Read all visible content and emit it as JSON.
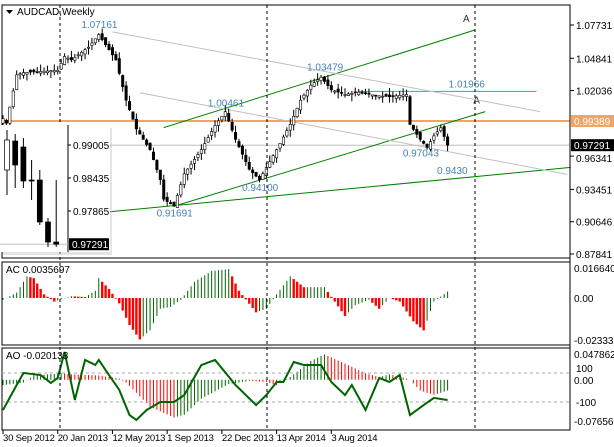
{
  "window": {
    "symbol_title": "AUDCAD,Weekly"
  },
  "colors": {
    "bull_body": "#ffffff",
    "bear_body": "#000000",
    "candle_outline": "#000000",
    "orange_level": "#f4a460",
    "teal_level": "#20b2aa",
    "trend_green": "#008000",
    "trend_grey": "#c0c0c0",
    "ac_up": "#006400",
    "ac_down": "#ff0000",
    "label_text": "#4682b4",
    "cci_line": "#006400"
  },
  "chart_data": [
    {
      "type": "candlestick",
      "title": "AUDCAD,Weekly",
      "price_axis_ticks": [
        "1.07731",
        "1.04841",
        "1.02036",
        "0.96341",
        "0.93451",
        "0.90646",
        "0.87841"
      ],
      "ylim": [
        0.87841,
        1.07731
      ],
      "date_ticks": [
        {
          "bar": 0,
          "label": "30 Sep 2012"
        },
        {
          "bar": 16,
          "label": "20 Jan 2013"
        },
        {
          "bar": 32,
          "label": "12 May 2013"
        },
        {
          "bar": 48,
          "label": "1 Sep 2013"
        },
        {
          "bar": 64,
          "label": "22 Dec 2013"
        },
        {
          "bar": 80,
          "label": "13 Apr 2014"
        },
        {
          "bar": 96,
          "label": "3 Aug 2014"
        }
      ],
      "close_path": [
        [
          0,
          0.996
        ],
        [
          1,
          0.992
        ],
        [
          4,
          1.034
        ],
        [
          6,
          1.036
        ],
        [
          16,
          1.038
        ],
        [
          18,
          1.05
        ],
        [
          20,
          1.047
        ],
        [
          25,
          1.058
        ],
        [
          28,
          1.069
        ],
        [
          33,
          1.047
        ],
        [
          36,
          1.012
        ],
        [
          39,
          0.987
        ],
        [
          43,
          0.969
        ],
        [
          46,
          0.943
        ],
        [
          47,
          0.926
        ],
        [
          50,
          0.92
        ],
        [
          53,
          0.948
        ],
        [
          58,
          0.969
        ],
        [
          62,
          0.99
        ],
        [
          65,
          1.002
        ],
        [
          68,
          0.978
        ],
        [
          72,
          0.952
        ],
        [
          75,
          0.943
        ],
        [
          80,
          0.969
        ],
        [
          84,
          0.991
        ],
        [
          87,
          1.012
        ],
        [
          90,
          1.025
        ],
        [
          93,
          1.032
        ],
        [
          96,
          1.021
        ],
        [
          100,
          1.017
        ],
        [
          104,
          1.019
        ],
        [
          109,
          1.016
        ],
        [
          113,
          1.015
        ],
        [
          118,
          1.017
        ],
        [
          119,
          0.991
        ],
        [
          122,
          0.978
        ],
        [
          124,
          0.971
        ],
        [
          126,
          0.981
        ],
        [
          128,
          0.988
        ],
        [
          130,
          0.97291
        ]
      ],
      "levels": {
        "orange": {
          "price": 0.99389,
          "label": "0.99389"
        },
        "current": {
          "price": 0.97291,
          "label": "0.97291"
        },
        "teal": {
          "price": 1.01966,
          "from_bar": 104,
          "to_bar": 156,
          "label": "1.01966"
        }
      },
      "trendlines": [
        {
          "color": "green",
          "from": [
            47,
            0.9882
          ],
          "to": [
            138,
            1.073
          ],
          "label": "A"
        },
        {
          "color": "green",
          "from": [
            50,
            0.9199
          ],
          "to": [
            141,
            1.0021
          ],
          "label": "A"
        },
        {
          "color": "green",
          "from": [
            24,
            0.913
          ],
          "to": [
            166,
            0.9536
          ]
        },
        {
          "color": "grey",
          "from": [
            32,
            1.0713
          ],
          "to": [
            157,
            1.0021
          ]
        },
        {
          "color": "grey",
          "from": [
            40,
            1.0185
          ],
          "to": [
            165,
            0.9476
          ]
        }
      ],
      "annotations": [
        {
          "text": "1.07161",
          "bar": 27,
          "price": 1.0745
        },
        {
          "text": "1.00461",
          "bar": 64,
          "price": 1.0065
        },
        {
          "text": "1.03479",
          "bar": 93,
          "price": 1.038
        },
        {
          "text": "0.97043",
          "bar": 121,
          "price": 0.963
        },
        {
          "text": "0.9430",
          "bar": 131,
          "price": 0.948
        },
        {
          "text": "0.94100",
          "bar": 74,
          "price": 0.933
        },
        {
          "text": "0.91691",
          "bar": 49,
          "price": 0.911
        }
      ],
      "inset": {
        "ticks": [
          "0.99005",
          "0.98435",
          "0.97865"
        ],
        "current_label": "0.97291",
        "candles": [
          {
            "o": 0.98573,
            "h": 0.99264,
            "l": 0.98141,
            "c": 0.99091
          },
          {
            "o": 0.99074,
            "h": 0.99195,
            "l": 0.98262,
            "c": 0.9866
          },
          {
            "o": 0.9897,
            "h": 0.99126,
            "l": 0.98262,
            "c": 0.98383
          },
          {
            "o": 0.984,
            "h": 0.98746,
            "l": 0.98055,
            "c": 0.984
          },
          {
            "o": 0.984,
            "h": 0.98573,
            "l": 0.97623,
            "c": 0.97675
          },
          {
            "o": 0.97675,
            "h": 0.97744,
            "l": 0.97243,
            "c": 0.97329
          },
          {
            "o": 0.97329,
            "h": 0.984,
            "l": 0.97243,
            "c": 0.97291
          }
        ]
      }
    },
    {
      "type": "bar",
      "indicator": "AC",
      "label": "AC 0.0035697",
      "ticks": [
        "0.016640",
        "0.00",
        "-0.023335"
      ],
      "ylim": [
        -0.023335,
        0.01664
      ],
      "path": [
        [
          0,
          -0.001
        ],
        [
          4,
          0.003
        ],
        [
          7,
          0.012
        ],
        [
          9,
          0.011
        ],
        [
          12,
          0.002
        ],
        [
          15,
          -0.002
        ],
        [
          20,
          0.001
        ],
        [
          24,
          0.0005
        ],
        [
          27,
          0.004
        ],
        [
          28,
          0.011
        ],
        [
          31,
          0.005
        ],
        [
          34,
          -0.003
        ],
        [
          37,
          -0.015
        ],
        [
          40,
          -0.023
        ],
        [
          43,
          -0.018
        ],
        [
          46,
          -0.006
        ],
        [
          49,
          -0.005
        ],
        [
          52,
          -0.001
        ],
        [
          56,
          0.009
        ],
        [
          61,
          0.015
        ],
        [
          66,
          0.016
        ],
        [
          69,
          0.004
        ],
        [
          74,
          -0.008
        ],
        [
          77,
          -0.006
        ],
        [
          80,
          0.002
        ],
        [
          84,
          0.012
        ],
        [
          88,
          0.006
        ],
        [
          94,
          0.006
        ],
        [
          97,
          -0.002
        ],
        [
          100,
          -0.01
        ],
        [
          103,
          -0.004
        ],
        [
          107,
          -0.001
        ],
        [
          110,
          -0.006
        ],
        [
          113,
          0
        ],
        [
          116,
          -0.002
        ],
        [
          120,
          -0.013
        ],
        [
          123,
          -0.018
        ],
        [
          126,
          -0.002
        ],
        [
          130,
          0.0036
        ]
      ]
    },
    {
      "type": "bar",
      "indicator": "AO",
      "label": "AO -0.020133",
      "ticks": [
        "0.047862",
        "0.00",
        "-0.076568"
      ],
      "ylim": [
        -0.076568,
        0.047862
      ],
      "path": [
        [
          0,
          -0.01
        ],
        [
          6,
          -0.005
        ],
        [
          9,
          0.008
        ],
        [
          17,
          0.012
        ],
        [
          20,
          0.01
        ],
        [
          28,
          0.008
        ],
        [
          34,
          0.002
        ],
        [
          36,
          -0.005
        ],
        [
          43,
          -0.05
        ],
        [
          50,
          -0.07
        ],
        [
          53,
          -0.065
        ],
        [
          58,
          -0.035
        ],
        [
          66,
          -0.008
        ],
        [
          72,
          -0.002
        ],
        [
          77,
          -0.004
        ],
        [
          80,
          -0.01
        ],
        [
          84,
          0.005
        ],
        [
          90,
          0.035
        ],
        [
          94,
          0.047
        ],
        [
          100,
          0.03
        ],
        [
          106,
          0.012
        ],
        [
          110,
          0.005
        ],
        [
          113,
          0.01
        ],
        [
          116,
          0.006
        ],
        [
          119,
          0
        ],
        [
          122,
          -0.02
        ],
        [
          126,
          -0.028
        ],
        [
          130,
          -0.020133
        ]
      ],
      "overlay": {
        "type": "line",
        "levels": [
          "100",
          "-100"
        ],
        "path": [
          [
            0,
            -155
          ],
          [
            4,
            17
          ],
          [
            6,
            100
          ],
          [
            11,
            86
          ],
          [
            14,
            31
          ],
          [
            16,
            66
          ],
          [
            18,
            245
          ],
          [
            21,
            -86
          ],
          [
            24,
            190
          ],
          [
            27,
            155
          ],
          [
            28,
            190
          ],
          [
            31,
            86
          ],
          [
            34,
            -17
          ],
          [
            37,
            -190
          ],
          [
            39,
            -224
          ],
          [
            42,
            -155
          ],
          [
            46,
            -100
          ],
          [
            50,
            -100
          ],
          [
            53,
            -52
          ],
          [
            58,
            155
          ],
          [
            62,
            190
          ],
          [
            68,
            17
          ],
          [
            74,
            -121
          ],
          [
            77,
            -52
          ],
          [
            80,
            38
          ],
          [
            82,
            38
          ],
          [
            85,
            176
          ],
          [
            88,
            155
          ],
          [
            93,
            155
          ],
          [
            96,
            38
          ],
          [
            100,
            -52
          ],
          [
            102,
            17
          ],
          [
            106,
            -155
          ],
          [
            110,
            66
          ],
          [
            113,
            38
          ],
          [
            116,
            86
          ],
          [
            119,
            -190
          ],
          [
            123,
            -121
          ],
          [
            126,
            -72
          ],
          [
            130,
            -86
          ]
        ]
      }
    }
  ]
}
